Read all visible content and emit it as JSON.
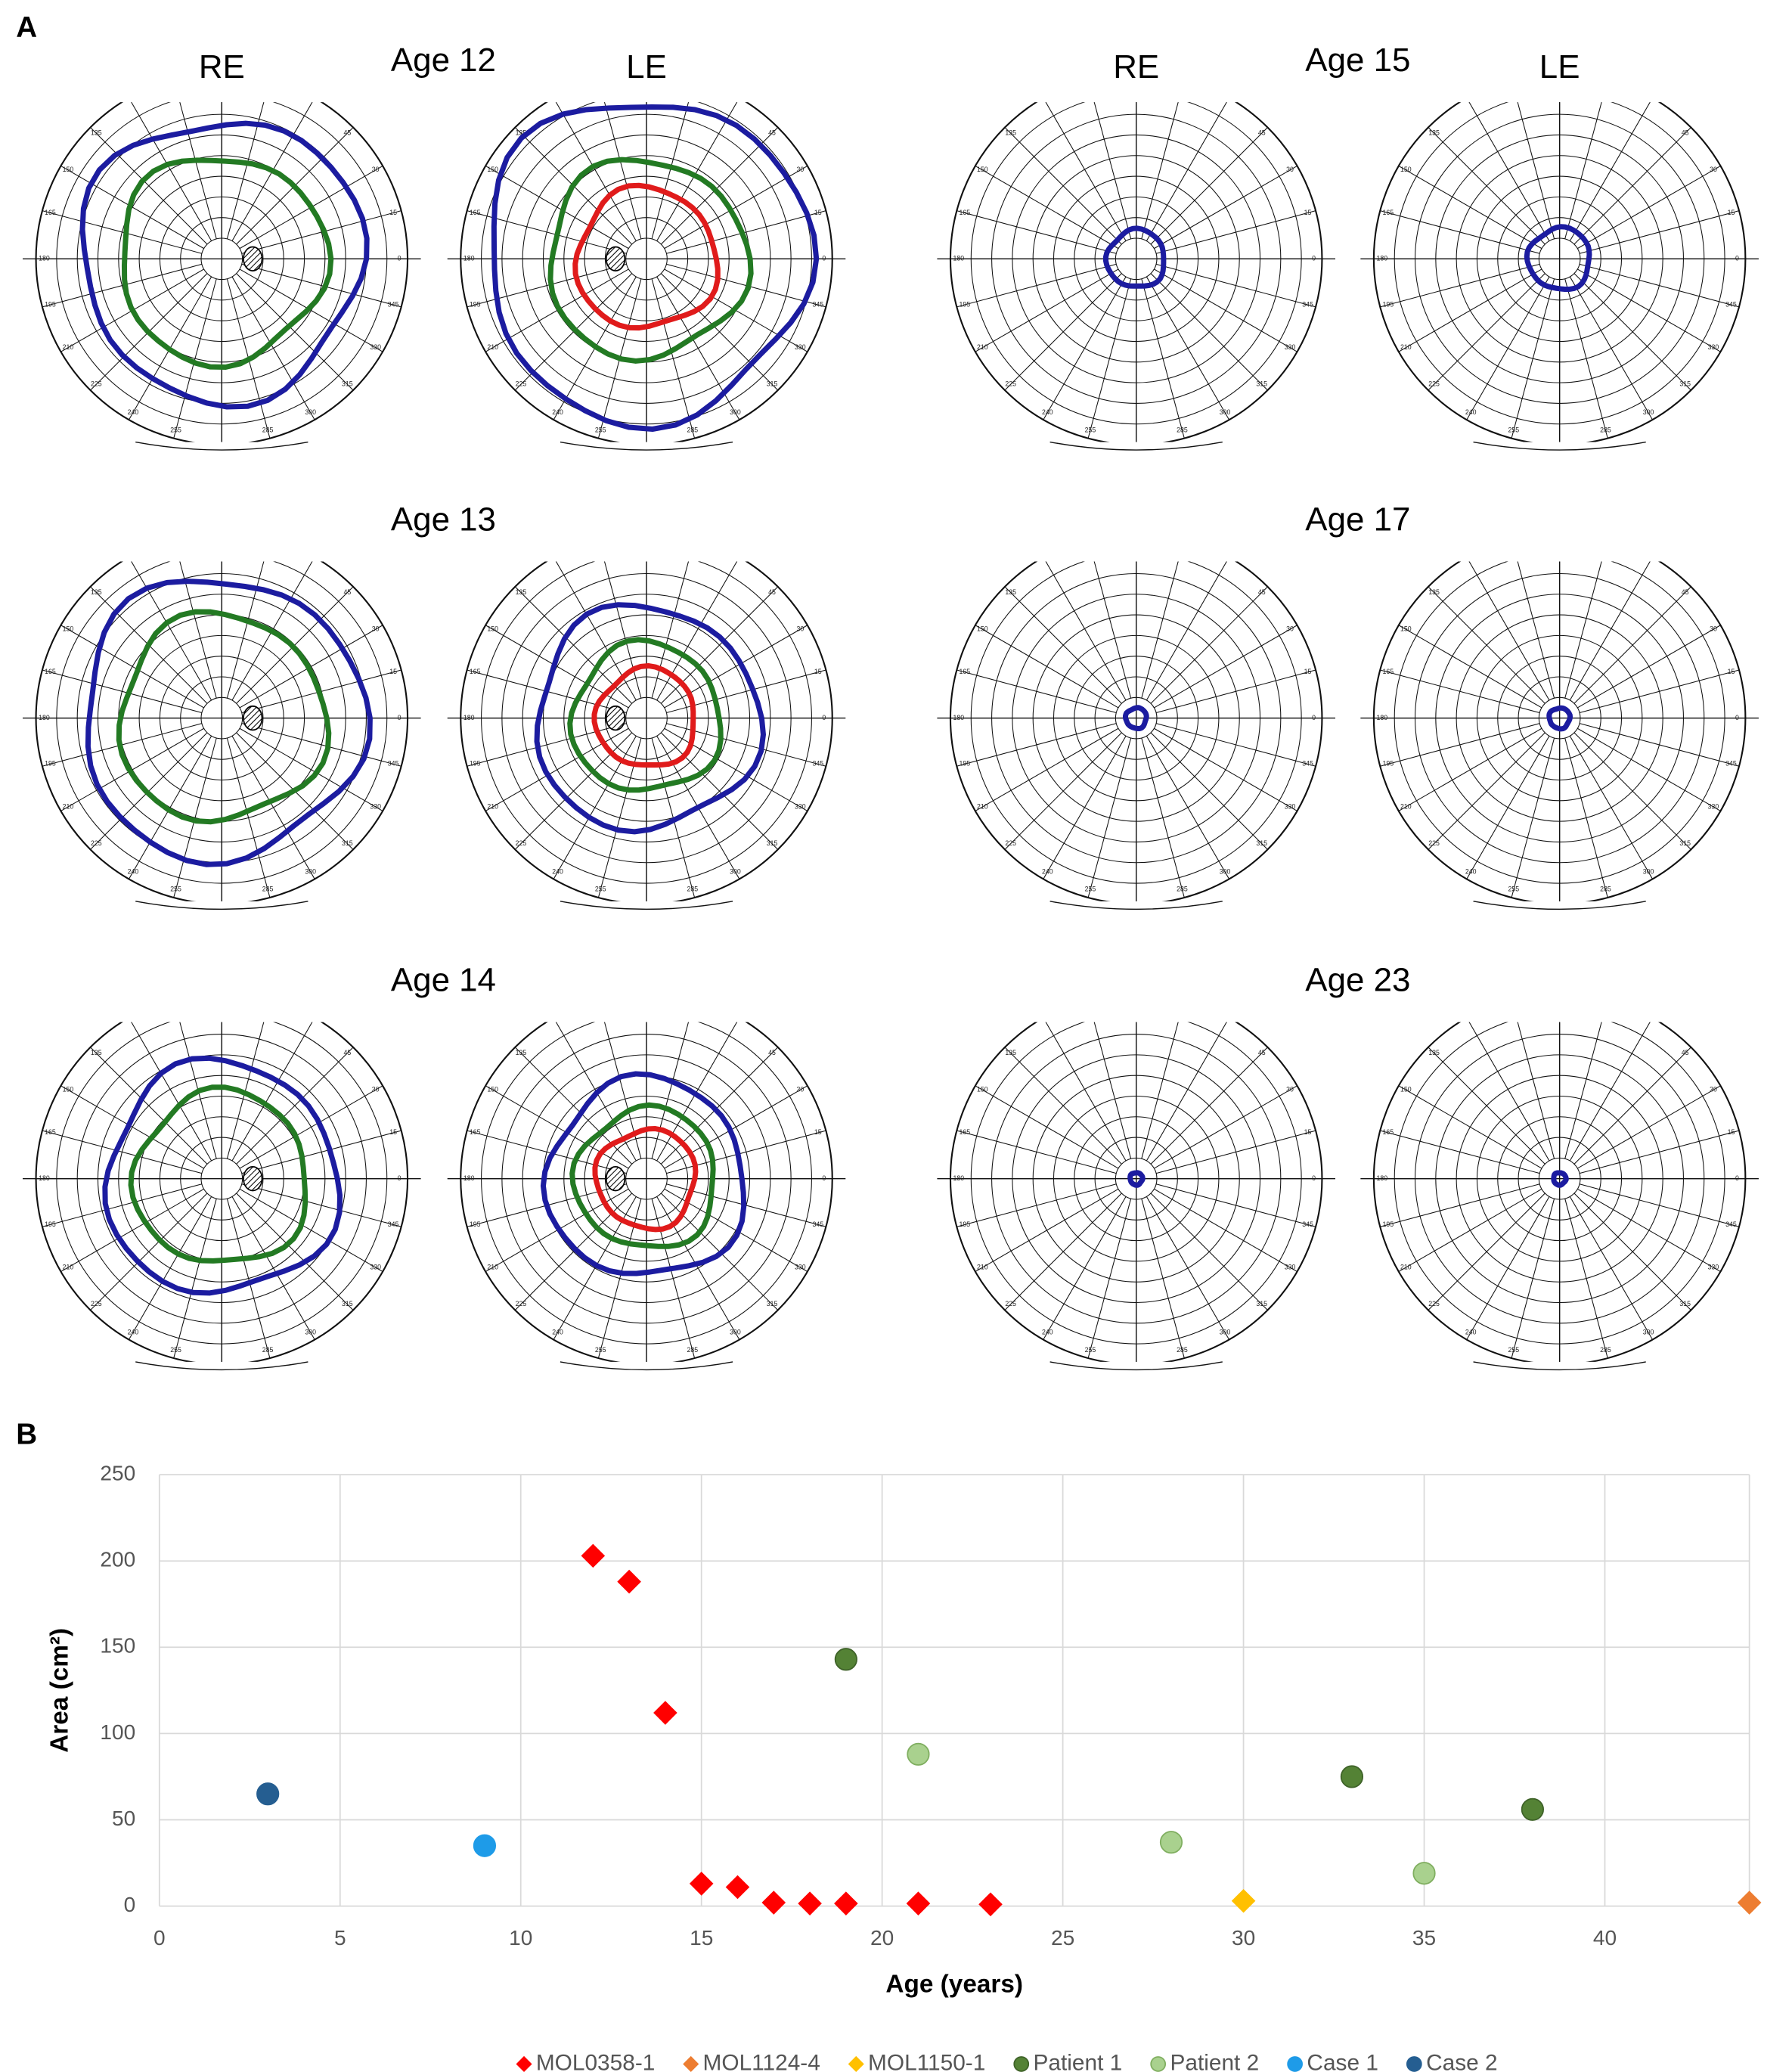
{
  "figure": {
    "panel_a_label": "A",
    "eye_labels": [
      "RE",
      "LE"
    ],
    "meridian_labels": [
      0,
      15,
      30,
      45,
      60,
      75,
      90,
      105,
      120,
      135,
      150,
      165,
      180,
      195,
      210,
      225,
      240,
      255,
      270,
      285,
      300,
      315,
      330,
      345
    ],
    "visits": [
      {
        "label": "Age 12",
        "show_eye_labels": true,
        "eyes": [
          {
            "scotoma": true,
            "isopters": [
              {
                "color": "#1c1ca0",
                "radius": 68
              },
              {
                "color": "#237a23",
                "radius": 50
              }
            ]
          },
          {
            "scotoma": true,
            "isopters": [
              {
                "color": "#1c1ca0",
                "radius": 78
              },
              {
                "color": "#237a23",
                "radius": 48
              },
              {
                "color": "#e01b1b",
                "radius": 34
              }
            ]
          }
        ]
      },
      {
        "label": "Age 13",
        "show_eye_labels": false,
        "eyes": [
          {
            "scotoma": true,
            "isopters": [
              {
                "color": "#1c1ca0",
                "radius": 68
              },
              {
                "color": "#237a23",
                "radius": 50
              }
            ]
          },
          {
            "scotoma": true,
            "isopters": [
              {
                "color": "#1c1ca0",
                "radius": 54
              },
              {
                "color": "#237a23",
                "radius": 36
              },
              {
                "color": "#e01b1b",
                "radius": 24
              }
            ]
          }
        ]
      },
      {
        "label": "Age 14",
        "show_eye_labels": false,
        "eyes": [
          {
            "scotoma": true,
            "isopters": [
              {
                "color": "#1c1ca0",
                "radius": 56
              },
              {
                "color": "#237a23",
                "radius": 42
              }
            ]
          },
          {
            "scotoma": true,
            "isopters": [
              {
                "color": "#1c1ca0",
                "radius": 48
              },
              {
                "color": "#237a23",
                "radius": 34
              },
              {
                "color": "#e01b1b",
                "radius": 24
              }
            ]
          }
        ]
      },
      {
        "label": "Age 15",
        "show_eye_labels": true,
        "eyes": [
          {
            "scotoma": false,
            "isopters": [
              {
                "color": "#1c1ca0",
                "radius": 14
              }
            ]
          },
          {
            "scotoma": false,
            "isopters": [
              {
                "color": "#1c1ca0",
                "radius": 15
              }
            ]
          }
        ]
      },
      {
        "label": "Age 17",
        "show_eye_labels": false,
        "eyes": [
          {
            "scotoma": false,
            "isopters": [
              {
                "color": "#1c1ca0",
                "radius": 5
              }
            ]
          },
          {
            "scotoma": false,
            "isopters": [
              {
                "color": "#1c1ca0",
                "radius": 5
              }
            ]
          }
        ]
      },
      {
        "label": "Age 23",
        "show_eye_labels": false,
        "eyes": [
          {
            "scotoma": false,
            "isopters": [
              {
                "color": "#1c1ca0",
                "radius": 3
              }
            ]
          },
          {
            "scotoma": false,
            "isopters": [
              {
                "color": "#1c1ca0",
                "radius": 3
              }
            ]
          }
        ]
      }
    ]
  },
  "chart_data": {
    "type": "scatter",
    "panel_label": "B",
    "x_label": "Age (years)",
    "y_label": "Area (cm²)",
    "xlim": [
      0,
      44
    ],
    "xticks": [
      0,
      5,
      10,
      15,
      20,
      25,
      30,
      35,
      40
    ],
    "ylim": [
      0,
      250
    ],
    "yticks": [
      0,
      50,
      100,
      150,
      200,
      250
    ],
    "grid": true,
    "legend": "bottom",
    "series": [
      {
        "name": "MOL0358-1",
        "color": "#ff0000",
        "marker": "diamond",
        "x": [
          12,
          13,
          14,
          15,
          16,
          17,
          18,
          19,
          21,
          23
        ],
        "values": [
          203,
          188,
          112,
          13,
          11,
          2,
          1.5,
          1.5,
          1.5,
          1
        ]
      },
      {
        "name": "MOL1124-4",
        "color": "#ed7d31",
        "marker": "diamond",
        "x": [
          44
        ],
        "values": [
          2
        ]
      },
      {
        "name": "MOL1150-1",
        "color": "#ffc000",
        "marker": "diamond",
        "x": [
          30
        ],
        "values": [
          3
        ]
      },
      {
        "name": "Patient 1",
        "color": "#548235",
        "marker": "circle",
        "x": [
          19,
          33,
          38
        ],
        "values": [
          143,
          75,
          56
        ]
      },
      {
        "name": "Patient 2",
        "color": "#a9d18e",
        "marker": "circle",
        "x": [
          21,
          28,
          35
        ],
        "values": [
          88,
          37,
          19
        ]
      },
      {
        "name": "Case 1",
        "color": "#1e9be8",
        "marker": "circle",
        "x": [
          9
        ],
        "values": [
          35
        ]
      },
      {
        "name": "Case 2",
        "color": "#255e91",
        "marker": "circle",
        "x": [
          3
        ],
        "values": [
          65
        ]
      }
    ]
  }
}
